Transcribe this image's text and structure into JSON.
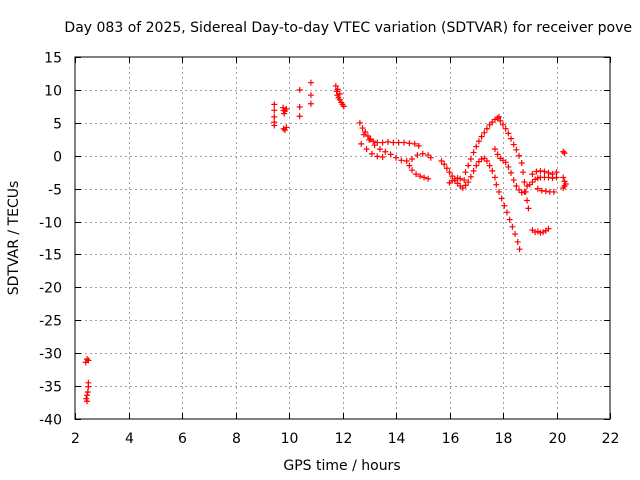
{
  "chart_data": {
    "type": "scatter",
    "title": "Day 083 of 2025, Sidereal Day-to-day VTEC variation (SDTVAR) for receiver pove",
    "xlabel": "GPS time / hours",
    "ylabel": "SDTVAR / TECUs",
    "xlim": [
      2,
      22
    ],
    "ylim": [
      -40,
      15
    ],
    "x_ticks": [
      2,
      4,
      6,
      8,
      10,
      12,
      14,
      16,
      18,
      20,
      22
    ],
    "y_ticks": [
      15,
      10,
      5,
      0,
      -5,
      -10,
      -15,
      -20,
      -25,
      -30,
      -35,
      -40
    ],
    "grid": true,
    "marker": "+",
    "series": [
      {
        "name": "SDTVAR",
        "color": "#ff0000",
        "points": [
          [
            2.4,
            -31.4
          ],
          [
            2.45,
            -30.9
          ],
          [
            2.5,
            -31.1
          ],
          [
            2.42,
            -36.9
          ],
          [
            2.45,
            -36.4
          ],
          [
            2.48,
            -35.9
          ],
          [
            2.5,
            -35.1
          ],
          [
            2.5,
            -34.5
          ],
          [
            2.45,
            -37.3
          ],
          [
            9.45,
            7.8
          ],
          [
            9.45,
            6.9
          ],
          [
            9.45,
            5.9
          ],
          [
            9.45,
            5.1
          ],
          [
            9.45,
            4.6
          ],
          [
            9.78,
            7.3
          ],
          [
            9.8,
            6.9
          ],
          [
            9.82,
            6.4
          ],
          [
            9.85,
            6.8
          ],
          [
            9.9,
            7.1
          ],
          [
            9.8,
            4.1
          ],
          [
            9.85,
            3.9
          ],
          [
            9.9,
            4.3
          ],
          [
            10.4,
            10.0
          ],
          [
            10.4,
            7.4
          ],
          [
            10.4,
            6.0
          ],
          [
            10.82,
            11.1
          ],
          [
            10.82,
            9.2
          ],
          [
            10.82,
            7.9
          ],
          [
            11.75,
            10.6
          ],
          [
            11.78,
            9.8
          ],
          [
            11.8,
            9.2
          ],
          [
            11.85,
            8.8
          ],
          [
            11.9,
            8.5
          ],
          [
            11.95,
            8.1
          ],
          [
            12.0,
            7.8
          ],
          [
            12.05,
            7.5
          ],
          [
            11.82,
            10.1
          ],
          [
            11.9,
            9.4
          ],
          [
            12.65,
            5.0
          ],
          [
            12.75,
            4.2
          ],
          [
            12.85,
            3.6
          ],
          [
            12.95,
            3.0
          ],
          [
            13.05,
            2.5
          ],
          [
            13.15,
            2.2
          ],
          [
            13.3,
            2.0
          ],
          [
            13.5,
            2.0
          ],
          [
            13.7,
            2.1
          ],
          [
            13.9,
            2.0
          ],
          [
            14.1,
            2.0
          ],
          [
            14.3,
            2.0
          ],
          [
            14.5,
            1.9
          ],
          [
            14.7,
            1.8
          ],
          [
            14.85,
            1.5
          ],
          [
            12.7,
            1.8
          ],
          [
            12.9,
            1.0
          ],
          [
            13.1,
            0.3
          ],
          [
            13.3,
            -0.1
          ],
          [
            13.5,
            -0.2
          ],
          [
            12.8,
            3.2
          ],
          [
            13.0,
            2.4
          ],
          [
            13.2,
            1.6
          ],
          [
            13.4,
            1.0
          ],
          [
            13.6,
            0.6
          ],
          [
            13.8,
            0.2
          ],
          [
            14.0,
            -0.3
          ],
          [
            14.2,
            -0.7
          ],
          [
            14.4,
            -0.8
          ],
          [
            14.6,
            -0.5
          ],
          [
            14.8,
            0.1
          ],
          [
            15.0,
            0.3
          ],
          [
            15.2,
            0.1
          ],
          [
            15.3,
            -0.3
          ],
          [
            14.5,
            -1.5
          ],
          [
            14.6,
            -2.2
          ],
          [
            14.75,
            -2.8
          ],
          [
            14.9,
            -3.1
          ],
          [
            15.05,
            -3.3
          ],
          [
            15.2,
            -3.5
          ],
          [
            15.7,
            -0.8
          ],
          [
            15.8,
            -1.3
          ],
          [
            15.9,
            -1.9
          ],
          [
            16.0,
            -2.5
          ],
          [
            16.1,
            -3.1
          ],
          [
            16.2,
            -3.8
          ],
          [
            16.3,
            -4.2
          ],
          [
            16.4,
            -4.6
          ],
          [
            16.5,
            -4.9
          ],
          [
            16.0,
            -4.1
          ],
          [
            16.1,
            -3.8
          ],
          [
            16.2,
            -3.5
          ],
          [
            16.3,
            -3.4
          ],
          [
            16.4,
            -3.5
          ],
          [
            16.55,
            -3.7
          ],
          [
            16.6,
            -2.5
          ],
          [
            16.7,
            -1.5
          ],
          [
            16.8,
            -0.5
          ],
          [
            16.9,
            0.5
          ],
          [
            17.0,
            1.4
          ],
          [
            17.1,
            2.2
          ],
          [
            17.2,
            2.9
          ],
          [
            17.3,
            3.5
          ],
          [
            17.4,
            4.1
          ],
          [
            17.5,
            4.7
          ],
          [
            17.6,
            5.1
          ],
          [
            17.7,
            5.5
          ],
          [
            17.8,
            5.7
          ],
          [
            17.85,
            5.9
          ],
          [
            16.6,
            -4.5
          ],
          [
            16.7,
            -4.0
          ],
          [
            16.8,
            -3.2
          ],
          [
            16.9,
            -2.3
          ],
          [
            17.0,
            -1.5
          ],
          [
            17.1,
            -0.9
          ],
          [
            17.2,
            -0.5
          ],
          [
            17.3,
            -0.4
          ],
          [
            17.4,
            -0.8
          ],
          [
            17.5,
            -1.5
          ],
          [
            17.6,
            -2.3
          ],
          [
            17.7,
            -3.3
          ],
          [
            17.75,
            -4.4
          ],
          [
            17.85,
            -5.5
          ],
          [
            17.95,
            -6.5
          ],
          [
            18.05,
            -7.6
          ],
          [
            18.15,
            -8.6
          ],
          [
            18.25,
            -9.7
          ],
          [
            18.35,
            -10.8
          ],
          [
            18.45,
            -11.9
          ],
          [
            18.55,
            -13.1
          ],
          [
            18.62,
            -14.2
          ],
          [
            17.7,
            1.0
          ],
          [
            17.8,
            0.2
          ],
          [
            17.9,
            -0.4
          ],
          [
            18.0,
            -0.7
          ],
          [
            18.1,
            -1.0
          ],
          [
            18.2,
            -1.7
          ],
          [
            18.3,
            -2.6
          ],
          [
            18.4,
            -3.7
          ],
          [
            18.5,
            -4.6
          ],
          [
            18.6,
            -5.2
          ],
          [
            18.7,
            -5.6
          ],
          [
            18.8,
            -5.5
          ],
          [
            18.9,
            -4.6
          ],
          [
            17.9,
            5.3
          ],
          [
            18.0,
            4.7
          ],
          [
            18.1,
            4.1
          ],
          [
            18.2,
            3.4
          ],
          [
            18.3,
            2.6
          ],
          [
            18.4,
            1.7
          ],
          [
            18.5,
            0.9
          ],
          [
            18.6,
            0.0
          ],
          [
            18.7,
            -1.1
          ],
          [
            18.75,
            -2.5
          ],
          [
            18.8,
            -4.0
          ],
          [
            18.85,
            -5.5
          ],
          [
            18.9,
            -6.8
          ],
          [
            18.95,
            -8.0
          ],
          [
            19.0,
            -4.4
          ],
          [
            19.1,
            -4.0
          ],
          [
            19.2,
            -3.6
          ],
          [
            19.3,
            -3.4
          ],
          [
            19.4,
            -3.3
          ],
          [
            19.55,
            -3.3
          ],
          [
            19.7,
            -3.3
          ],
          [
            19.85,
            -3.4
          ],
          [
            20.0,
            -3.3
          ],
          [
            19.1,
            -2.8
          ],
          [
            19.25,
            -2.4
          ],
          [
            19.4,
            -2.3
          ],
          [
            19.55,
            -2.4
          ],
          [
            19.7,
            -2.6
          ],
          [
            19.85,
            -2.8
          ],
          [
            20.0,
            -2.5
          ],
          [
            19.3,
            -5.0
          ],
          [
            19.45,
            -5.3
          ],
          [
            19.6,
            -5.4
          ],
          [
            19.75,
            -5.5
          ],
          [
            19.9,
            -5.5
          ],
          [
            19.1,
            -11.3
          ],
          [
            19.2,
            -11.6
          ],
          [
            19.3,
            -11.5
          ],
          [
            19.4,
            -11.7
          ],
          [
            19.5,
            -11.6
          ],
          [
            19.6,
            -11.4
          ],
          [
            19.7,
            -11.1
          ],
          [
            20.25,
            0.6
          ],
          [
            20.3,
            0.4
          ],
          [
            20.25,
            -3.3
          ],
          [
            20.3,
            -3.9
          ],
          [
            20.35,
            -4.3
          ],
          [
            20.3,
            -4.6
          ],
          [
            20.25,
            -4.9
          ]
        ]
      }
    ]
  }
}
